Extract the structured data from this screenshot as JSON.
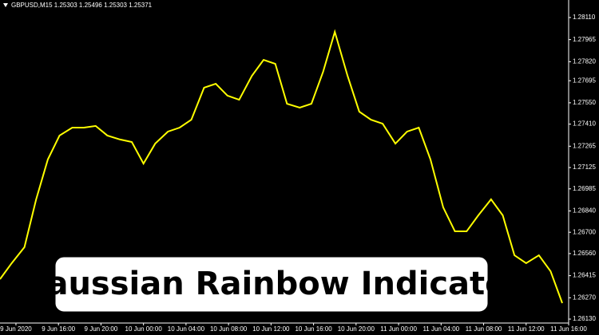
{
  "chart_data": {
    "type": "line",
    "title": "GBPUSD,M15  1.25303 1.25496 1.25303 1.25371",
    "annotation": "Gaussian Rainbow Indicator",
    "x": [
      -1.5,
      -0.4,
      0.8,
      1.9,
      3.0,
      4.1,
      5.3,
      6.4,
      7.5,
      8.6,
      9.8,
      10.9,
      12.0,
      13.1,
      14.3,
      15.4,
      16.5,
      17.7,
      18.8,
      19.9,
      21.0,
      22.2,
      23.3,
      24.4,
      25.5,
      26.7,
      27.8,
      28.9,
      30.0,
      31.2,
      32.3,
      33.4,
      34.5,
      35.7,
      36.8,
      37.9,
      39.0,
      40.2,
      41.3,
      42.4,
      43.5,
      44.7,
      45.8,
      46.9,
      48.0,
      49.2,
      50.3,
      51.4
    ],
    "series": [
      {
        "name": "GBPUSD,M15",
        "color": "#ffff00",
        "values": [
          1.26392,
          1.26497,
          1.26602,
          1.26916,
          1.27178,
          1.27335,
          1.27387,
          1.27387,
          1.27398,
          1.27335,
          1.27309,
          1.27293,
          1.27151,
          1.27282,
          1.27361,
          1.27387,
          1.27439,
          1.27649,
          1.27675,
          1.27597,
          1.2757,
          1.27727,
          1.27832,
          1.27806,
          1.27544,
          1.27518,
          1.27544,
          1.27754,
          1.28016,
          1.27727,
          1.27492,
          1.27439,
          1.27413,
          1.27282,
          1.27361,
          1.27387,
          1.27178,
          1.26863,
          1.26706,
          1.26706,
          1.26811,
          1.26916,
          1.26811,
          1.26549,
          1.26497,
          1.26549,
          1.26444,
          1.26235
        ]
      }
    ],
    "xlim": [
      -1.5,
      52.0
    ],
    "xticks": [
      {
        "value": 0,
        "label": "9 Jun 2020"
      },
      {
        "value": 4,
        "label": "9 Jun 16:00"
      },
      {
        "value": 8,
        "label": "9 Jun 20:00"
      },
      {
        "value": 12,
        "label": "10 Jun 00:00"
      },
      {
        "value": 16,
        "label": "10 Jun 04:00"
      },
      {
        "value": 20,
        "label": "10 Jun 08:00"
      },
      {
        "value": 24,
        "label": "10 Jun 12:00"
      },
      {
        "value": 28,
        "label": "10 Jun 16:00"
      },
      {
        "value": 32,
        "label": "10 Jun 20:00"
      },
      {
        "value": 36,
        "label": "11 Jun 00:00"
      },
      {
        "value": 40,
        "label": "11 Jun 04:00"
      },
      {
        "value": 44,
        "label": "11 Jun 08:00"
      },
      {
        "value": 48,
        "label": "11 Jun 12:00"
      },
      {
        "value": 52,
        "label": "11 Jun 16:00"
      }
    ],
    "ylim": [
      1.26104,
      1.28225
    ],
    "yticks": [
      {
        "value": 1.2811,
        "label": "1.28110"
      },
      {
        "value": 1.27965,
        "label": "1.27965"
      },
      {
        "value": 1.2782,
        "label": "1.27820"
      },
      {
        "value": 1.27695,
        "label": "1.27695"
      },
      {
        "value": 1.2755,
        "label": "1.27550"
      },
      {
        "value": 1.2741,
        "label": "1.27410"
      },
      {
        "value": 1.27265,
        "label": "1.27265"
      },
      {
        "value": 1.27125,
        "label": "1.27125"
      },
      {
        "value": 1.26985,
        "label": "1.26985"
      },
      {
        "value": 1.2684,
        "label": "1.26840"
      },
      {
        "value": 1.267,
        "label": "1.26700"
      },
      {
        "value": 1.2656,
        "label": "1.26560"
      },
      {
        "value": 1.26415,
        "label": "1.26415"
      },
      {
        "value": 1.2627,
        "label": "1.26270"
      },
      {
        "value": 1.2613,
        "label": "1.26130"
      }
    ],
    "grid": false
  }
}
